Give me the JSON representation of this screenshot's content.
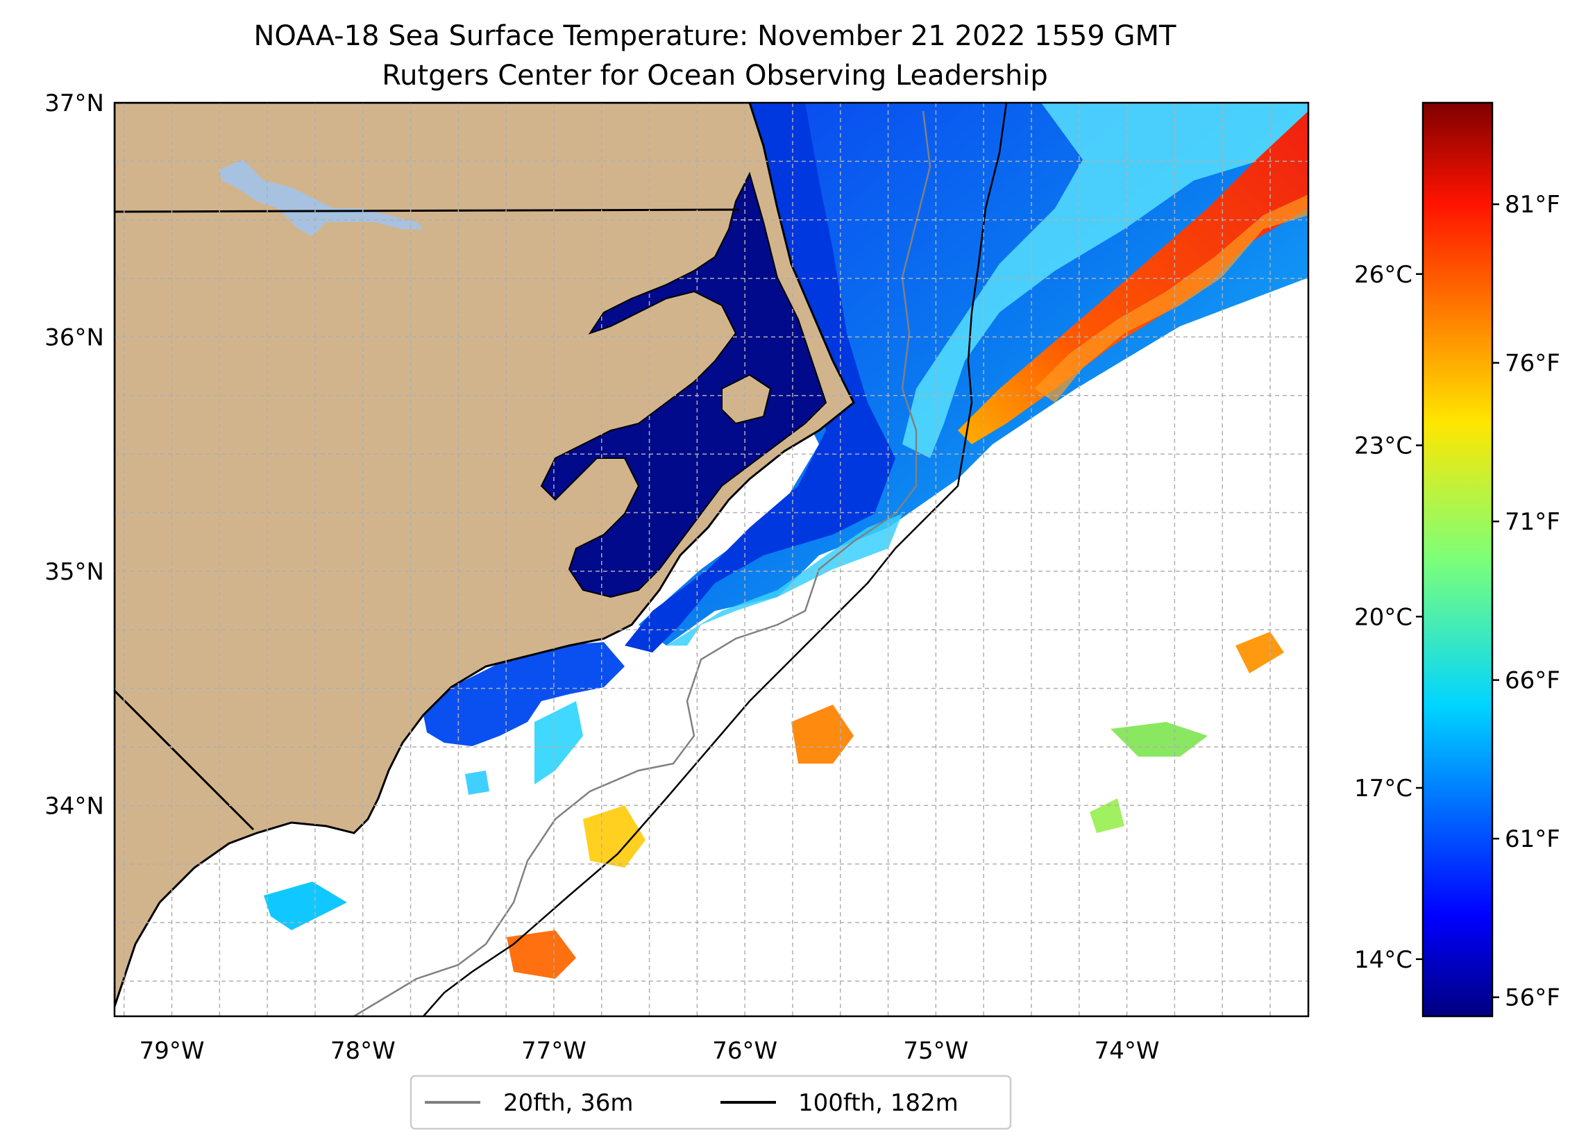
{
  "title": {
    "line1": "NOAA-18 Sea Surface Temperature: November 21 2022 1559 GMT",
    "line2": "Rutgers Center for Ocean Observing Leadership"
  },
  "map": {
    "lon_range": [
      -79.3,
      -73.05
    ],
    "lat_range": [
      33.1,
      37.0
    ],
    "lon_ticks": [
      {
        "value": -79,
        "label": "79°W"
      },
      {
        "value": -78,
        "label": "78°W"
      },
      {
        "value": -77,
        "label": "77°W"
      },
      {
        "value": -76,
        "label": "76°W"
      },
      {
        "value": -75,
        "label": "75°W"
      },
      {
        "value": -74,
        "label": "74°W"
      }
    ],
    "lat_ticks": [
      {
        "value": 34,
        "label": "34°N"
      },
      {
        "value": 35,
        "label": "35°N"
      },
      {
        "value": 36,
        "label": "36°N"
      },
      {
        "value": 37,
        "label": "37°N"
      }
    ],
    "grid": true,
    "colors": {
      "land": "#d2b48c",
      "ocean_nodata": "#ffffff",
      "lakes": "#a7c2e0",
      "sound": "#000a8a",
      "shelf_blue": "#0a4ee8",
      "gulf_stream": "#ff3a10",
      "contour_20fth": "#808080",
      "contour_100fth": "#000000"
    }
  },
  "colorbar": {
    "celsius_ticks": [
      {
        "value": 14,
        "label": "14°C"
      },
      {
        "value": 17,
        "label": "17°C"
      },
      {
        "value": 20,
        "label": "20°C"
      },
      {
        "value": 23,
        "label": "23°C"
      },
      {
        "value": 26,
        "label": "26°C"
      }
    ],
    "fahrenheit_ticks": [
      {
        "value": 56,
        "label": "56°F"
      },
      {
        "value": 61,
        "label": "61°F"
      },
      {
        "value": 66,
        "label": "66°F"
      },
      {
        "value": 71,
        "label": "71°F"
      },
      {
        "value": 76,
        "label": "76°F"
      },
      {
        "value": 81,
        "label": "81°F"
      }
    ],
    "range_f": [
      55.4,
      84.2
    ],
    "colormap": "jet"
  },
  "legend": {
    "placement": "below-map",
    "items": [
      {
        "label": "20fth, 36m",
        "color": "#808080"
      },
      {
        "label": "100fth, 182m",
        "color": "#000000"
      }
    ]
  }
}
